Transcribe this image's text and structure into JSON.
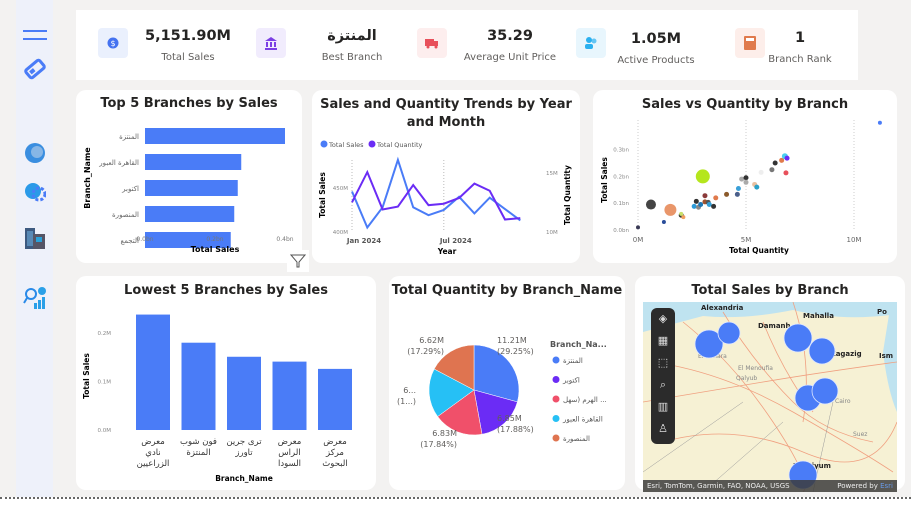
{
  "kpis": [
    {
      "value": "5,151.90M",
      "label": "Total Sales",
      "icon": "dollar-coin-icon",
      "color": "#4472f0",
      "bg": "#eaf0fd"
    },
    {
      "value": "المنتزة",
      "label": "Best Branch",
      "icon": "bank-icon",
      "color": "#7b3fe4",
      "bg": "#f1ecfd"
    },
    {
      "value": "35.29",
      "label": "Average Unit Price",
      "icon": "truck-icon",
      "color": "#e8505b",
      "bg": "#fdeeee"
    },
    {
      "value": "1.05M",
      "label": "Active Products",
      "icon": "users-icon",
      "color": "#2bb0ef",
      "bg": "#e8f6fd"
    },
    {
      "value": "1",
      "label": "Branch Rank",
      "icon": "calculator-icon",
      "color": "#e07a4c",
      "bg": "#fdeeea"
    }
  ],
  "sidebar": {
    "icons": [
      "menu-icon",
      "eraser-icon",
      "globe-icon",
      "gear-bulb-icon",
      "building-icon",
      "analytics-icon"
    ]
  },
  "charts": {
    "top5": {
      "title": "Top 5 Branches by Sales",
      "ylabel": "Branch_Name",
      "xlabel": "Total Sales"
    },
    "trend": {
      "title": "Sales and Quantity Trends by Year and Month",
      "xlabel": "Year",
      "ylabel": "Total Sales",
      "y2label": "Total Quantity"
    },
    "scatter": {
      "title": "Sales vs Quantity by Branch",
      "xlabel": "Total Quantity",
      "ylabel": "Total Sales"
    },
    "lowest5": {
      "title": "Lowest 5 Branches by Sales",
      "xlabel": "Branch_Name",
      "ylabel": "Total Sales"
    },
    "pie": {
      "title": "Total Quantity by Branch_Name",
      "legend_title": "Branch_Na..."
    },
    "map": {
      "title": "Total Sales by Branch",
      "attribution": "Esri, TomTom, Garmin, FAO, NOAA, USGS",
      "powered": "Powered by ",
      "powered_brand": "Esri",
      "places": [
        "Alexandria",
        "Alexandria",
        "Damanh",
        "Mahalla",
        "El Behara",
        "El Zagazig",
        "El Menoufia",
        "Qalyub",
        "Cairo",
        "Suez",
        "El Faiyum",
        "Po",
        "Ism"
      ]
    }
  },
  "chart_data": [
    {
      "type": "bar",
      "orientation": "horizontal",
      "title": "Top 5 Branches by Sales",
      "categories": [
        "المنتزة",
        "القاهرة العبور",
        "اكتوبر",
        "المنصورة",
        "التجمع"
      ],
      "values": [
        0.4,
        0.275,
        0.265,
        0.255,
        0.245
      ],
      "xlabel": "Total Sales",
      "ylabel": "Branch_Name",
      "xticks": [
        "0.0bn",
        "0.2bn",
        "0.4bn"
      ],
      "xlim": [
        0,
        0.4
      ],
      "unit": "bn",
      "color": "#4a7cf7"
    },
    {
      "type": "line",
      "title": "Sales and Quantity Trends by Year and Month",
      "x": [
        "Jan 2024",
        "Feb 2024",
        "Mar 2024",
        "Apr 2024",
        "May 2024",
        "Jun 2024",
        "Jul 2024",
        "Aug 2024",
        "Sep 2024",
        "Oct 2024",
        "Nov 2024",
        "Dec 2024"
      ],
      "xticks": [
        "Jan 2024",
        "Jul 2024"
      ],
      "series": [
        {
          "name": "Total Sales",
          "axis": "left",
          "color": "#4a7cf7",
          "values": [
            445,
            404,
            427,
            481,
            427,
            418,
            424,
            439,
            420,
            438,
            425,
            412
          ]
        },
        {
          "name": "Total Quantity",
          "axis": "right",
          "color": "#6b2cf5",
          "values": [
            12.0,
            14.1,
            11.5,
            11.7,
            13.2,
            11.8,
            11.9,
            12.3,
            13.3,
            12.8,
            10.8,
            10.9
          ]
        }
      ],
      "yticks": [
        "400M",
        "450M"
      ],
      "ylim": [
        400,
        490
      ],
      "y2ticks": [
        "10M",
        "15M"
      ],
      "y2lim": [
        10,
        15.5
      ],
      "xlabel": "Year",
      "ylabel": "Total Sales",
      "y2label": "Total Quantity",
      "legend": "top-left"
    },
    {
      "type": "scatter",
      "title": "Sales vs Quantity by Branch",
      "xlabel": "Total Quantity",
      "ylabel": "Total Sales",
      "xticks": [
        "0M",
        "5M",
        "10M"
      ],
      "yticks": [
        "0.0bn",
        "0.1bn",
        "0.2bn",
        "0.3bn"
      ],
      "xlim": [
        0,
        11.5
      ],
      "ylim": [
        0,
        0.4
      ],
      "points": [
        [
          0,
          0.01,
          "#3a3a55",
          2
        ],
        [
          0.6,
          0.095,
          "#444",
          5
        ],
        [
          1.5,
          0.075,
          "#e9966a",
          6
        ],
        [
          1.2,
          0.03,
          "#2a4d9a",
          2
        ],
        [
          2,
          0.055,
          "#333",
          2.5
        ],
        [
          2.1,
          0.048,
          "#f0a060",
          2
        ],
        [
          2,
          0.06,
          "#c8e06a",
          2
        ],
        [
          2.6,
          0.088,
          "#2b9ad8",
          2.5
        ],
        [
          2.7,
          0.107,
          "#333",
          2.5
        ],
        [
          2.8,
          0.085,
          "#888",
          2.5
        ],
        [
          2.9,
          0.095,
          "#1f77b4",
          2.5
        ],
        [
          3,
          0.2,
          "#b5e61d",
          7
        ],
        [
          3.1,
          0.105,
          "#a0522d",
          2.5
        ],
        [
          3.1,
          0.128,
          "#8b3a3a",
          2.5
        ],
        [
          3.25,
          0.103,
          "#555",
          2.5
        ],
        [
          3.3,
          0.095,
          "#35a0d8",
          2.5
        ],
        [
          3.5,
          0.088,
          "#333",
          2.5
        ],
        [
          3.6,
          0.12,
          "#e07a4c",
          2.5
        ],
        [
          4.1,
          0.133,
          "#8b5a2b",
          2.5
        ],
        [
          4.6,
          0.133,
          "#4a5f8a",
          2.5
        ],
        [
          4.65,
          0.155,
          "#3aa0d8",
          2.5
        ],
        [
          4.8,
          0.19,
          "#aaa",
          2.5
        ],
        [
          5,
          0.195,
          "#333",
          2.5
        ],
        [
          5,
          0.178,
          "#aaa",
          2.5
        ],
        [
          5.4,
          0.17,
          "#e8c0a0",
          2.5
        ],
        [
          5.5,
          0.16,
          "#2aa0c8",
          2.5
        ],
        [
          5.7,
          0.215,
          "#eee",
          2.5
        ],
        [
          6.2,
          0.225,
          "#777",
          2.5
        ],
        [
          6.35,
          0.25,
          "#333",
          2.5
        ],
        [
          6.65,
          0.26,
          "#e07a4c",
          2.5
        ],
        [
          6.8,
          0.275,
          "#4ad0f0",
          3
        ],
        [
          6.9,
          0.268,
          "#6b2cf5",
          2.5
        ],
        [
          6.85,
          0.213,
          "#e8505b",
          2.5
        ],
        [
          11.2,
          0.4,
          "#4a7cf7",
          2
        ]
      ]
    },
    {
      "type": "bar",
      "title": "Lowest 5 Branches by Sales",
      "categories": [
        "معرض نادي الزراعيين",
        "فون شوب المنتزة",
        "ترى جرين تاورز",
        "معرض الراس السودا",
        "معرض مركز البحوث"
      ],
      "values": [
        0.238,
        0.18,
        0.151,
        0.141,
        0.126
      ],
      "yticks": [
        "0.0M",
        "0.1M",
        "0.2M"
      ],
      "ylim": [
        0,
        0.24
      ],
      "unit": "M",
      "xlabel": "Branch_Name",
      "ylabel": "Total Sales",
      "color": "#4a7cf7"
    },
    {
      "type": "pie",
      "title": "Total Quantity by Branch_Name",
      "legend_title": "Branch_Na...",
      "legend": "right",
      "slices": [
        {
          "name": "المنتزة",
          "value": 11.21,
          "label": "11.21M",
          "pct": "(29.25%)",
          "color": "#4a7cf7"
        },
        {
          "name": "اكتوبر",
          "value": 6.85,
          "label": "6.85M",
          "pct": "(17.88%)",
          "color": "#6b2cf5"
        },
        {
          "name": "الهرم (سهل ...",
          "value": 6.83,
          "label": "6.83M",
          "pct": "(17.84%)",
          "color": "#f0506a"
        },
        {
          "name": "القاهرة العبور",
          "value": 6.8,
          "label": "6...",
          "pct": "(1...)",
          "color": "#26c0f5"
        },
        {
          "name": "المنصورة",
          "value": 6.62,
          "label": "6.62M",
          "pct": "(17.29%)",
          "color": "#df7450"
        }
      ]
    }
  ]
}
